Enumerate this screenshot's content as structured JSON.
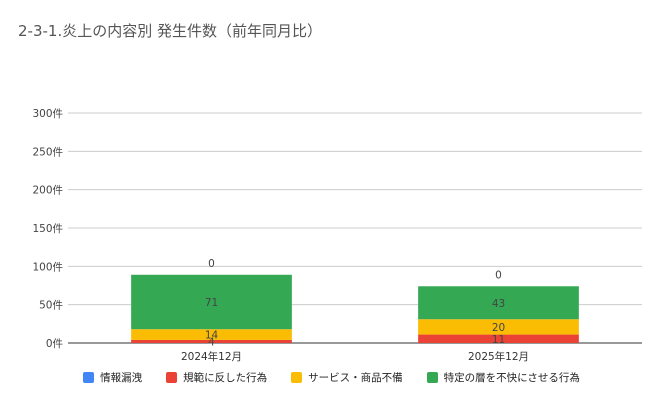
{
  "chart_data": {
    "type": "bar",
    "stacked": true,
    "title": "2-3-1.炎上の内容別 発生件数（前年同月比）",
    "xlabel": "",
    "ylabel": "",
    "categories": [
      "2024年12月",
      "2025年12月"
    ],
    "series": [
      {
        "name": "情報漏洩",
        "values": [
          0,
          0
        ],
        "color": "#4285f4"
      },
      {
        "name": "規範に反した行為",
        "values": [
          4,
          11
        ],
        "color": "#ea4335"
      },
      {
        "name": "サービス・商品不備",
        "values": [
          14,
          20
        ],
        "color": "#fbbc04"
      },
      {
        "name": "特定の層を不快にさせる行為",
        "values": [
          71,
          43
        ],
        "color": "#34a853"
      }
    ],
    "ylim": [
      0,
      300
    ],
    "yticks": [
      {
        "value": 0,
        "label": "0件"
      },
      {
        "value": 50,
        "label": "50件"
      },
      {
        "value": 100,
        "label": "100件"
      },
      {
        "value": 150,
        "label": "150件"
      },
      {
        "value": 200,
        "label": "200件"
      },
      {
        "value": 250,
        "label": "250件"
      },
      {
        "value": 300,
        "label": "300件"
      }
    ],
    "grid": true,
    "legend_position": "bottom",
    "data_labels": true
  }
}
